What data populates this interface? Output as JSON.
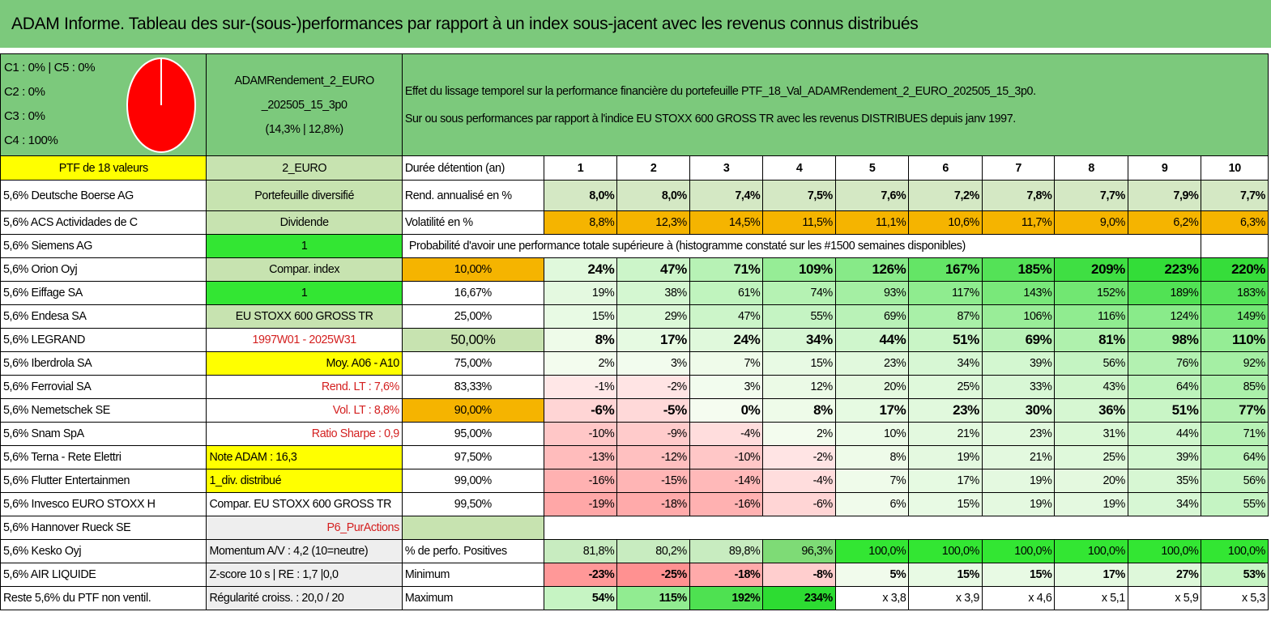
{
  "title": "ADAM Informe. Tableau des sur-(sous-)performances par rapport à un index sous-jacent avec les revenus connus distribués",
  "classes": [
    "C1 : 0% | C5 : 0%",
    "C2 : 0%",
    "C3 : 0%",
    "C4 : 100%"
  ],
  "pie": {
    "slices": [
      {
        "label": "C4",
        "value": 100,
        "color": "#ff0000"
      }
    ]
  },
  "fund": {
    "line1": "ADAMRendement_2_EURO",
    "line2": "_202505_15_3p0",
    "line3": "(14,3% | 12,8%)"
  },
  "description": {
    "line1": "Effet du lissage temporel sur la performance financière du portefeuille PTF_18_Val_ADAMRendement_2_EURO_202505_15_3p0.",
    "line2": "Sur ou sous performances par rapport à l'indice EU STOXX 600 GROSS TR avec les revenus DISTRIBUES depuis janv 1997."
  },
  "ptf_label": "PTF de 18 valeurs",
  "currency": "2_EURO",
  "duration_label": "Durée détention (an)",
  "years": [
    "1",
    "2",
    "3",
    "4",
    "5",
    "6",
    "7",
    "8",
    "9",
    "10"
  ],
  "holdings": [
    "5,6% Deutsche Boerse AG",
    "5,6% ACS Actividades de C",
    "5,6% Siemens AG",
    "5,6% Orion Oyj",
    "5,6% Eiffage SA",
    "5,6% Endesa SA",
    "5,6% LEGRAND",
    "5,6% Iberdrola SA",
    "5,6% Ferrovial SA",
    "5,6% Nemetschek SE",
    "5,6% Snam SpA",
    "5,6% Terna - Rete Elettri",
    "5,6% Flutter Entertainmen",
    "5,6% Invesco EURO STOXX H",
    "5,6% Hannover Rueck SE",
    "5,6% Kesko Oyj",
    "5,6% AIR LIQUIDE",
    "Reste 5,6% du PTF non ventil."
  ],
  "params": [
    "Portefeuille diversifié",
    "Dividende",
    "1",
    "Compar. index",
    "1",
    "EU STOXX 600 GROSS TR",
    "1997W01 - 2025W31",
    "Moy. A06 - A10",
    "Rend. LT : 7,6%",
    "Vol. LT : 8,8%",
    "Ratio Sharpe : 0,9",
    "Note ADAM : 16,3",
    "1_div. distribué",
    "Compar. EU STOXX 600 GROSS TR",
    "P6_PurActions",
    "Momentum A/V : 4,2 (10=neutre)",
    "Z-score 10 s | RE : 1,7 |0,0",
    "Régularité croiss. : 20,0 / 20"
  ],
  "rendement": {
    "label": "Rend. annualisé en %",
    "values": [
      "8,0%",
      "8,0%",
      "7,4%",
      "7,5%",
      "7,6%",
      "7,2%",
      "7,8%",
      "7,7%",
      "7,9%",
      "7,7%"
    ]
  },
  "volatilite": {
    "label": "Volatilité en %",
    "values": [
      "8,8%",
      "12,3%",
      "14,5%",
      "11,5%",
      "11,1%",
      "10,6%",
      "11,7%",
      "9,0%",
      "6,2%",
      "6,3%"
    ]
  },
  "proba_title": "Probabilité d'avoir une performance totale supérieure à (histogramme constaté sur les #1500 semaines disponibles)",
  "proba_rows": [
    {
      "level": "10,00%",
      "values": [
        "24%",
        "47%",
        "71%",
        "109%",
        "126%",
        "167%",
        "185%",
        "209%",
        "223%",
        "220%"
      ]
    },
    {
      "level": "16,67%",
      "values": [
        "19%",
        "38%",
        "61%",
        "74%",
        "93%",
        "117%",
        "143%",
        "152%",
        "189%",
        "183%"
      ]
    },
    {
      "level": "25,00%",
      "values": [
        "15%",
        "29%",
        "47%",
        "55%",
        "69%",
        "87%",
        "106%",
        "116%",
        "124%",
        "149%"
      ]
    },
    {
      "level": "50,00%",
      "values": [
        "8%",
        "17%",
        "24%",
        "34%",
        "44%",
        "51%",
        "69%",
        "81%",
        "98%",
        "110%"
      ]
    },
    {
      "level": "75,00%",
      "values": [
        "2%",
        "3%",
        "7%",
        "15%",
        "23%",
        "34%",
        "39%",
        "56%",
        "76%",
        "92%"
      ]
    },
    {
      "level": "83,33%",
      "values": [
        "-1%",
        "-2%",
        "3%",
        "12%",
        "20%",
        "25%",
        "33%",
        "43%",
        "64%",
        "85%"
      ]
    },
    {
      "level": "90,00%",
      "values": [
        "-6%",
        "-5%",
        "0%",
        "8%",
        "17%",
        "23%",
        "30%",
        "36%",
        "51%",
        "77%"
      ]
    },
    {
      "level": "95,00%",
      "values": [
        "-10%",
        "-9%",
        "-4%",
        "2%",
        "10%",
        "21%",
        "23%",
        "31%",
        "44%",
        "71%"
      ]
    },
    {
      "level": "97,50%",
      "values": [
        "-13%",
        "-12%",
        "-10%",
        "-2%",
        "8%",
        "19%",
        "21%",
        "25%",
        "39%",
        "64%"
      ]
    },
    {
      "level": "99,00%",
      "values": [
        "-16%",
        "-15%",
        "-14%",
        "-4%",
        "7%",
        "17%",
        "19%",
        "20%",
        "35%",
        "56%"
      ]
    },
    {
      "level": "99,50%",
      "values": [
        "-19%",
        "-18%",
        "-16%",
        "-6%",
        "6%",
        "15%",
        "19%",
        "19%",
        "34%",
        "55%"
      ]
    }
  ],
  "positives": {
    "label": "% de perfo. Positives",
    "values": [
      "81,8%",
      "80,2%",
      "89,8%",
      "96,3%",
      "100,0%",
      "100,0%",
      "100,0%",
      "100,0%",
      "100,0%",
      "100,0%"
    ]
  },
  "minimum": {
    "label": "Minimum",
    "values": [
      "-23%",
      "-25%",
      "-18%",
      "-8%",
      "5%",
      "15%",
      "15%",
      "17%",
      "27%",
      "53%"
    ]
  },
  "maximum": {
    "label": "Maximum",
    "values": [
      "54%",
      "115%",
      "192%",
      "234%",
      "x 3,8",
      "x 3,9",
      "x 4,6",
      "x 5,1",
      "x 5,9",
      "x 5,3"
    ]
  },
  "colors": {
    "header_green": "#7cc97c",
    "mid_green": "#c7e3b0",
    "yellow": "#ffff00",
    "orange": "#f5b400",
    "bright_green": "#33e633",
    "red_text": "#d42020",
    "pie_red": "#ff0000"
  }
}
